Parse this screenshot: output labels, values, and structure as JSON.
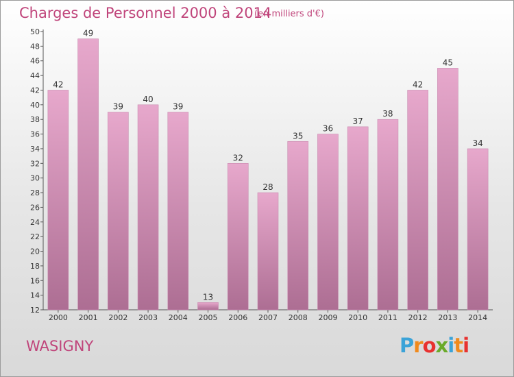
{
  "header": {
    "title": "Charges de Personnel 2000 à 2014",
    "subtitle": "(en milliers d'€)"
  },
  "footer": {
    "commune": "WASIGNY",
    "logo_letters": [
      "P",
      "r",
      "o",
      "x",
      "i",
      "t",
      "i"
    ],
    "logo_colors": [
      "#3ba3d8",
      "#f08a1d",
      "#e8312f",
      "#6aaa2a",
      "#3ba3d8",
      "#f08a1d",
      "#e8312f"
    ]
  },
  "colors": {
    "bar_top": "#e7a8cc",
    "bar_bottom": "#ad6e93",
    "title": "#c0457b"
  },
  "chart_data": {
    "type": "bar",
    "categories": [
      "2000",
      "2001",
      "2002",
      "2003",
      "2004",
      "2005",
      "2006",
      "2007",
      "2008",
      "2009",
      "2010",
      "2011",
      "2012",
      "2013",
      "2014"
    ],
    "values": [
      42,
      49,
      39,
      40,
      39,
      13,
      32,
      28,
      35,
      36,
      37,
      38,
      42,
      45,
      34
    ],
    "ylim": [
      12,
      50
    ],
    "yticks": [
      12,
      14,
      16,
      18,
      20,
      22,
      24,
      26,
      28,
      30,
      32,
      34,
      36,
      38,
      40,
      42,
      44,
      46,
      48,
      50
    ],
    "grid": false,
    "legend": "none"
  }
}
